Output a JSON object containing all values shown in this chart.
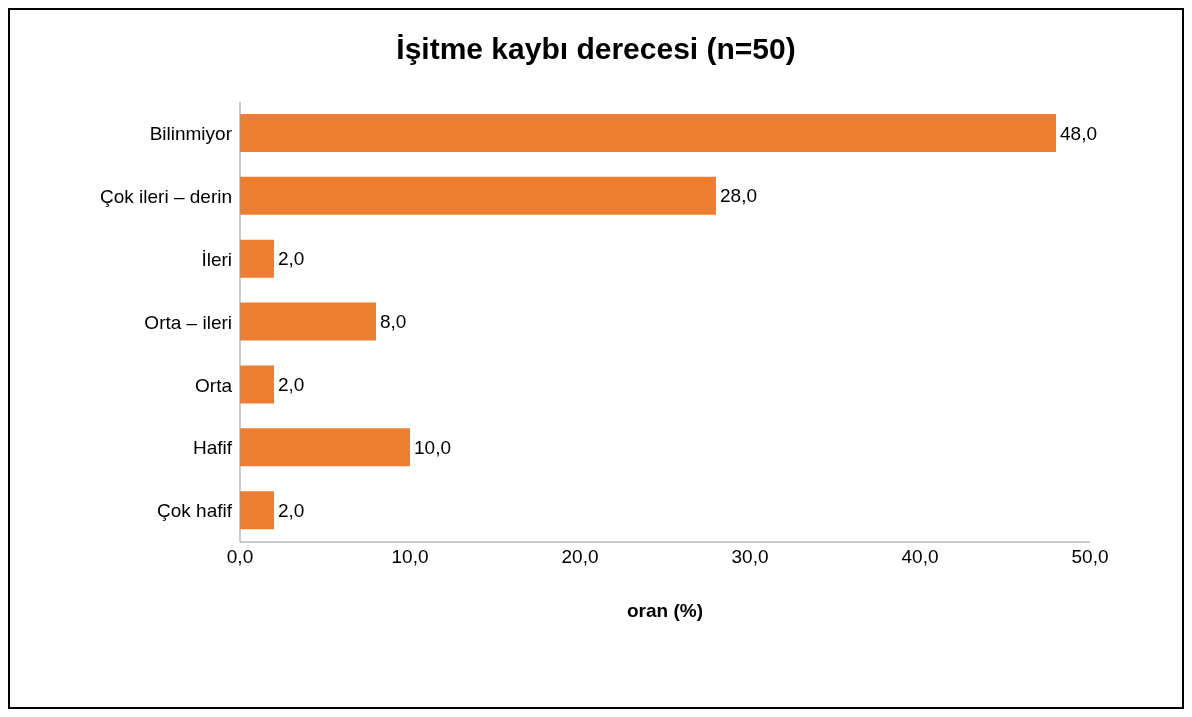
{
  "chart_data": {
    "type": "bar",
    "orientation": "horizontal",
    "title": "İşitme kaybı derecesi (n=50)",
    "xlabel": "oran (%)",
    "categories": [
      "Bilinmiyor",
      "Çok ileri – derin",
      "İleri",
      "Orta – ileri",
      "Orta",
      "Hafif",
      "Çok hafif"
    ],
    "values": [
      48,
      28,
      2,
      8,
      2,
      10,
      2
    ],
    "value_labels": [
      "48,0",
      "28,0",
      "2,0",
      "8,0",
      "2,0",
      "10,0",
      "2,0"
    ],
    "color": "#ed7d31",
    "xlim": [
      0,
      50
    ],
    "xticks": [
      {
        "value": 0,
        "label": "0,0"
      },
      {
        "value": 10,
        "label": "10,0"
      },
      {
        "value": 20,
        "label": "20,0"
      },
      {
        "value": 30,
        "label": "30,0"
      },
      {
        "value": 40,
        "label": "40,0"
      },
      {
        "value": 50,
        "label": "50,0"
      }
    ]
  }
}
